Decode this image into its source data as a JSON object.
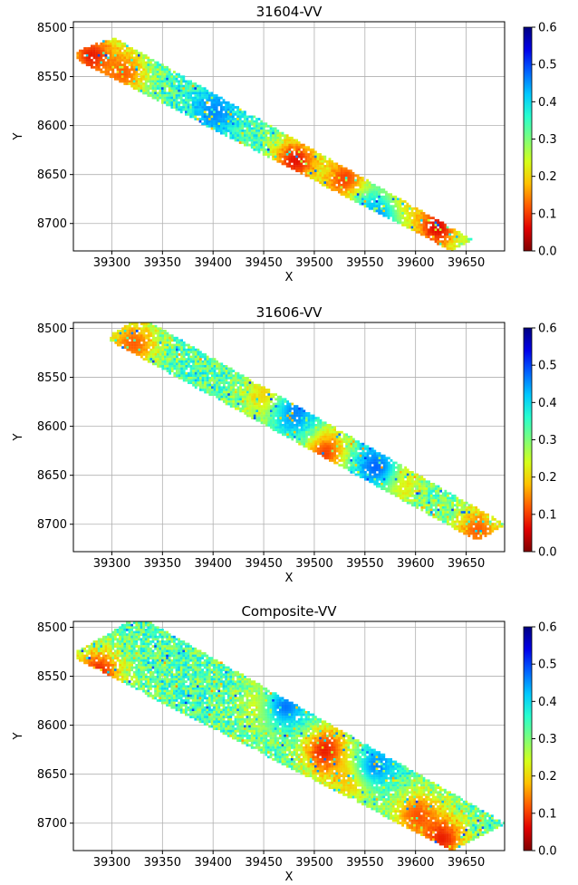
{
  "colormap": {
    "name": "jet_r",
    "stops": [
      "#7f0000",
      "#e00000",
      "#ff5a00",
      "#ffc000",
      "#d4ff1a",
      "#7dff7a",
      "#29ffce",
      "#00c8ff",
      "#0064ff",
      "#0000e8",
      "#00007f"
    ]
  },
  "colorbar": {
    "range": [
      0,
      0.6
    ],
    "ticks": [
      "0.0",
      "0.1",
      "0.2",
      "0.3",
      "0.4",
      "0.5",
      "0.6"
    ]
  },
  "chart_data": [
    {
      "type": "scatter",
      "title": "31604-VV",
      "xlabel": "X",
      "ylabel": "Y",
      "xlim": [
        39262,
        39688
      ],
      "ylim": [
        8728,
        8494
      ],
      "y_inverted": true,
      "xticks": [
        "39300",
        "39350",
        "39400",
        "39450",
        "39500",
        "39550",
        "39600",
        "39650"
      ],
      "yticks": [
        "8500",
        "8550",
        "8600",
        "8650",
        "8700"
      ],
      "grid": true,
      "colorbar_range": [
        0,
        0.6
      ],
      "swath": [
        [
          39265,
          8523
        ],
        [
          39300,
          8508
        ],
        [
          39655,
          8715
        ],
        [
          39635,
          8727
        ],
        [
          39265,
          8532
        ]
      ],
      "value_pattern": {
        "base": 0.34,
        "low_zones": [
          {
            "x": 39280,
            "y": 8528,
            "value": 0.07
          },
          {
            "x": 39310,
            "y": 8545,
            "value": 0.12
          },
          {
            "x": 39480,
            "y": 8635,
            "value": 0.07
          },
          {
            "x": 39530,
            "y": 8655,
            "value": 0.09
          },
          {
            "x": 39580,
            "y": 8680,
            "value": 0.12
          },
          {
            "x": 39620,
            "y": 8703,
            "value": 0.06
          }
        ],
        "high_zones": [
          {
            "x": 39400,
            "y": 8585,
            "value": 0.46
          },
          {
            "x": 39560,
            "y": 8690,
            "value": 0.45
          }
        ]
      }
    },
    {
      "type": "scatter",
      "title": "31606-VV",
      "xlabel": "X",
      "ylabel": "Y",
      "xlim": [
        39262,
        39688
      ],
      "ylim": [
        8728,
        8494
      ],
      "y_inverted": true,
      "xticks": [
        "39300",
        "39350",
        "39400",
        "39450",
        "39500",
        "39550",
        "39600",
        "39650"
      ],
      "yticks": [
        "8500",
        "8550",
        "8600",
        "8650",
        "8700"
      ],
      "grid": true,
      "colorbar_range": [
        0,
        0.6
      ],
      "swath": [
        [
          39298,
          8505
        ],
        [
          39327,
          8487
        ],
        [
          39688,
          8699
        ],
        [
          39660,
          8716
        ],
        [
          39298,
          8512
        ]
      ],
      "value_pattern": {
        "base": 0.33,
        "low_zones": [
          {
            "x": 39320,
            "y": 8515,
            "value": 0.12
          },
          {
            "x": 39455,
            "y": 8570,
            "value": 0.15
          },
          {
            "x": 39510,
            "y": 8625,
            "value": 0.09
          },
          {
            "x": 39580,
            "y": 8650,
            "value": 0.14
          },
          {
            "x": 39660,
            "y": 8705,
            "value": 0.12
          }
        ],
        "high_zones": [
          {
            "x": 39480,
            "y": 8585,
            "value": 0.46
          },
          {
            "x": 39560,
            "y": 8640,
            "value": 0.48
          }
        ]
      }
    },
    {
      "type": "scatter",
      "title": "Composite-VV",
      "xlabel": "X",
      "ylabel": "Y",
      "xlim": [
        39262,
        39688
      ],
      "ylim": [
        8728,
        8494
      ],
      "y_inverted": true,
      "xticks": [
        "39300",
        "39350",
        "39400",
        "39450",
        "39500",
        "39550",
        "39600",
        "39650"
      ],
      "yticks": [
        "8500",
        "8550",
        "8600",
        "8650",
        "8700"
      ],
      "grid": true,
      "colorbar_range": [
        0,
        0.6
      ],
      "swath": [
        [
          39265,
          8523
        ],
        [
          39325,
          8487
        ],
        [
          39688,
          8699
        ],
        [
          39635,
          8727
        ],
        [
          39265,
          8532
        ]
      ],
      "value_pattern": {
        "base": 0.33,
        "low_zones": [
          {
            "x": 39285,
            "y": 8545,
            "value": 0.08
          },
          {
            "x": 39455,
            "y": 8580,
            "value": 0.13
          },
          {
            "x": 39510,
            "y": 8625,
            "value": 0.07
          },
          {
            "x": 39540,
            "y": 8650,
            "value": 0.09
          },
          {
            "x": 39600,
            "y": 8690,
            "value": 0.12
          },
          {
            "x": 39625,
            "y": 8715,
            "value": 0.08
          }
        ],
        "high_zones": [
          {
            "x": 39470,
            "y": 8580,
            "value": 0.47
          },
          {
            "x": 39560,
            "y": 8640,
            "value": 0.46
          }
        ]
      }
    }
  ]
}
